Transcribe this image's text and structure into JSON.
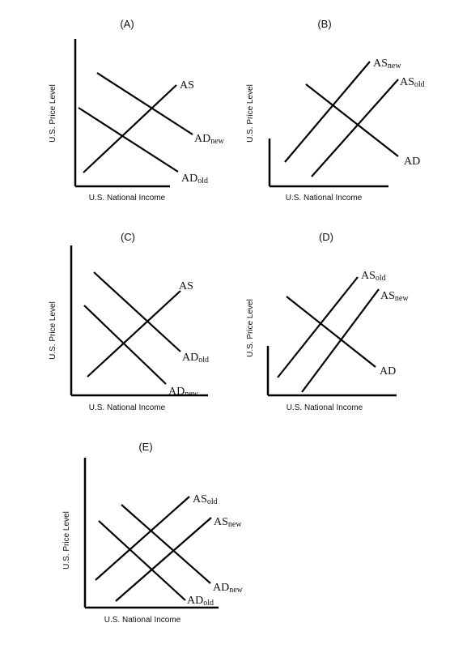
{
  "panels": [
    {
      "id": "A",
      "label": "(A)",
      "ylabel": "U.S. Price Level",
      "xlabel": "U.S. National Income",
      "curves": [
        {
          "main": "AS",
          "sub": ""
        },
        {
          "main": "AD",
          "sub": "new"
        },
        {
          "main": "AD",
          "sub": "old"
        }
      ]
    },
    {
      "id": "B",
      "label": "(B)",
      "ylabel": "U.S. Price Level",
      "xlabel": "U.S. National Income",
      "curves": [
        {
          "main": "AS",
          "sub": "new"
        },
        {
          "main": "AS",
          "sub": "old"
        },
        {
          "main": "AD",
          "sub": ""
        }
      ]
    },
    {
      "id": "C",
      "label": "(C)",
      "ylabel": "U.S. Price Level",
      "xlabel": "U.S. National Income",
      "curves": [
        {
          "main": "AS",
          "sub": ""
        },
        {
          "main": "AD",
          "sub": "old"
        },
        {
          "main": "AD",
          "sub": "new"
        }
      ]
    },
    {
      "id": "D",
      "label": "(D)",
      "ylabel": "U.S. Price Level",
      "xlabel": "U.S. National Income",
      "curves": [
        {
          "main": "AS",
          "sub": "old"
        },
        {
          "main": "AS",
          "sub": "new"
        },
        {
          "main": "AD",
          "sub": ""
        }
      ]
    },
    {
      "id": "E",
      "label": "(E)",
      "ylabel": "U.S. Price Level",
      "xlabel": "U.S. National Income",
      "curves": [
        {
          "main": "AS",
          "sub": "old"
        },
        {
          "main": "AS",
          "sub": "new"
        },
        {
          "main": "AD",
          "sub": "new"
        },
        {
          "main": "AD",
          "sub": "old"
        }
      ]
    }
  ]
}
